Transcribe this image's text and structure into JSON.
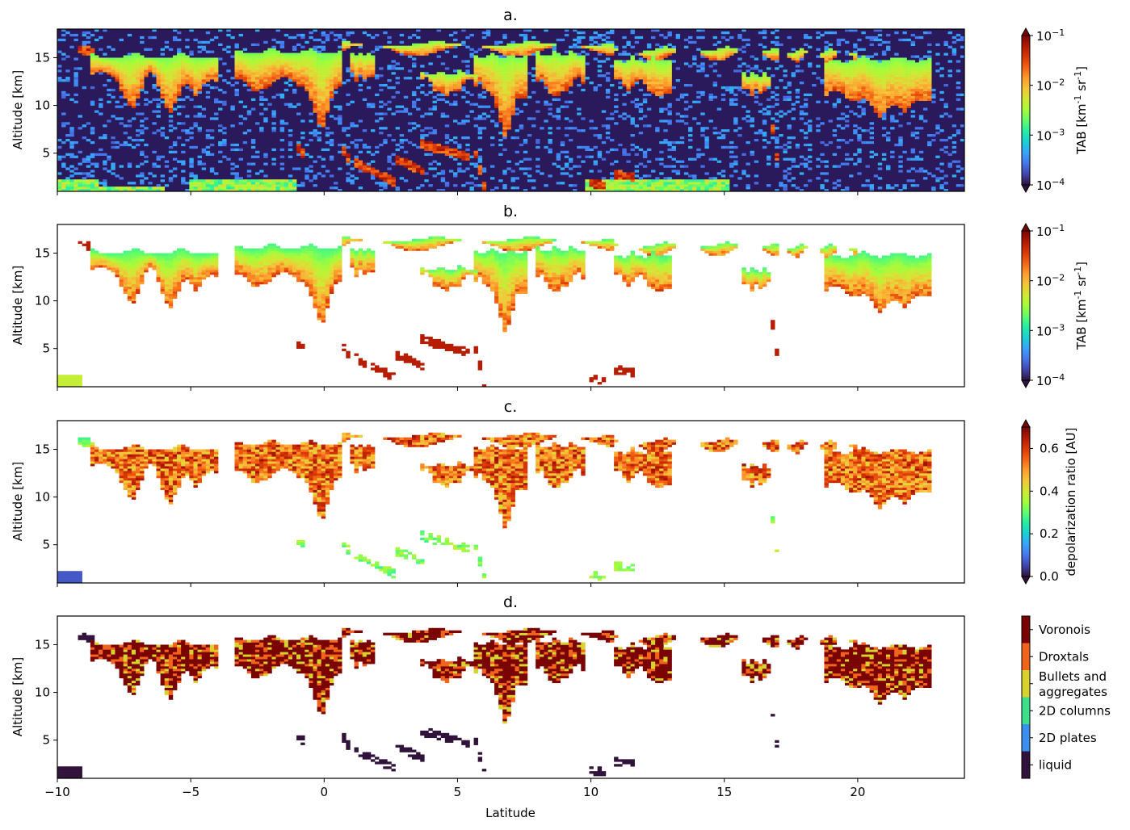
{
  "chart_data": [
    {
      "type": "heatmap",
      "title": "a.",
      "xlabel": "",
      "ylabel": "Altitude [km]",
      "xlim": [
        -10,
        24
      ],
      "ylim": [
        1,
        18
      ],
      "xticks": [
        -10,
        -5,
        0,
        5,
        10,
        15,
        20
      ],
      "yticks": [
        5,
        10,
        15
      ],
      "colorbar": {
        "label_html": "TAB [km<tspan baseline-shift='super' font-size='10'>-1</tspan> sr<tspan baseline-shift='super' font-size='10'>-1</tspan>]",
        "label": "TAB [km-1 sr-1]",
        "scale": "log",
        "range": [
          0.0001,
          0.1
        ],
        "tick_labels": [
          "10",
          "10",
          "10",
          "10"
        ],
        "tick_exponents": [
          "-4",
          "-3",
          "-2",
          "-1"
        ],
        "colormap": "turbo",
        "extend": "both"
      },
      "background": "#2a1a5c",
      "field": "total attenuated backscatter, unmasked"
    },
    {
      "type": "heatmap",
      "title": "b.",
      "xlabel": "",
      "ylabel": "Altitude [km]",
      "xlim": [
        -10,
        24
      ],
      "ylim": [
        1,
        18
      ],
      "xticks": [
        -10,
        -5,
        0,
        5,
        10,
        15,
        20
      ],
      "yticks": [
        5,
        10,
        15
      ],
      "colorbar": {
        "label": "TAB [km-1 sr-1]",
        "scale": "log",
        "range": [
          0.0001,
          0.1
        ],
        "tick_labels": [
          "10",
          "10",
          "10",
          "10"
        ],
        "tick_exponents": [
          "-4",
          "-3",
          "-2",
          "-1"
        ],
        "colormap": "turbo",
        "extend": "both"
      },
      "background": "#ffffff",
      "field": "total attenuated backscatter, cloud mask applied"
    },
    {
      "type": "heatmap",
      "title": "c.",
      "xlabel": "",
      "ylabel": "Altitude [km]",
      "xlim": [
        -10,
        24
      ],
      "ylim": [
        1,
        18
      ],
      "xticks": [
        -10,
        -5,
        0,
        5,
        10,
        15,
        20
      ],
      "yticks": [
        5,
        10,
        15
      ],
      "colorbar": {
        "label": "depolarization ratio [AU]",
        "scale": "linear",
        "range": [
          0.0,
          0.7
        ],
        "tick_values": [
          0.0,
          0.2,
          0.4,
          0.6
        ],
        "tick_labels": [
          "0.0",
          "0.2",
          "0.4",
          "0.6"
        ],
        "colormap": "turbo",
        "extend": "both"
      },
      "background": "#ffffff",
      "field": "depolarization ratio"
    },
    {
      "type": "heatmap",
      "title": "d.",
      "xlabel": "Latitude",
      "ylabel": "Altitude [km]",
      "xlim": [
        -10,
        24
      ],
      "ylim": [
        1,
        18
      ],
      "xticks": [
        -10,
        -5,
        0,
        5,
        10,
        15,
        20
      ],
      "xtick_labels": [
        "−10",
        "−5",
        "0",
        "5",
        "10",
        "15",
        "20"
      ],
      "yticks": [
        5,
        10,
        15
      ],
      "colorbar": {
        "label": "",
        "type": "categorical",
        "categories": [
          {
            "label": "liquid",
            "color": "#30123b"
          },
          {
            "label": "2D plates",
            "color": "#3b8ff0"
          },
          {
            "label": "2D columns",
            "color": "#3ce08a"
          },
          {
            "label": "Bullets and\naggregates",
            "lines": [
              "Bullets and",
              "aggregates"
            ],
            "color": "#d7d22e"
          },
          {
            "label": "Droxtals",
            "color": "#f2641b"
          },
          {
            "label": "Voronois",
            "color": "#7a0403"
          }
        ]
      },
      "background": "#ffffff",
      "field": "ice habit classification"
    }
  ],
  "colors": {
    "turbo_stops": [
      "#30123b",
      "#4145ab",
      "#4675ed",
      "#39a2fc",
      "#1bcfd4",
      "#24eca6",
      "#61fc6c",
      "#a4fc3b",
      "#d1e834",
      "#f3c63a",
      "#fe9b2d",
      "#f36315",
      "#d93806",
      "#b11901",
      "#7a0403"
    ]
  }
}
